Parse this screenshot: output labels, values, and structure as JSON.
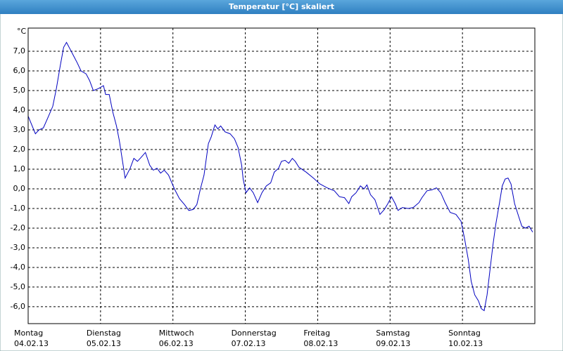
{
  "chart_data": {
    "type": "line",
    "title": "Temperatur [°C] skaliert",
    "y_unit": "°C",
    "xlim": [
      0,
      7
    ],
    "xticks": [
      {
        "value": 0,
        "label": "Montag"
      },
      {
        "value": 1,
        "label": "Dienstag"
      },
      {
        "value": 2,
        "label": "Mittwoch"
      },
      {
        "value": 3,
        "label": "Donnerstag"
      },
      {
        "value": 4,
        "label": "Freitag"
      },
      {
        "value": 5,
        "label": "Samstag"
      },
      {
        "value": 6,
        "label": "Sonntag"
      }
    ],
    "xtick_dates": [
      "04.02.13",
      "05.02.13",
      "06.02.13",
      "07.02.13",
      "08.02.13",
      "09.02.13",
      "10.02.13"
    ],
    "ylim": [
      -6.86,
      8.18
    ],
    "yticks": [
      {
        "value": -6,
        "label": "-6,0"
      },
      {
        "value": -5,
        "label": "-5,0"
      },
      {
        "value": -4,
        "label": "-4,0"
      },
      {
        "value": -3,
        "label": "-3,0"
      },
      {
        "value": -2,
        "label": "-2,0"
      },
      {
        "value": -1,
        "label": "-1,0"
      },
      {
        "value": 0,
        "label": "0,0"
      },
      {
        "value": 1,
        "label": "1,0"
      },
      {
        "value": 2,
        "label": "2,0"
      },
      {
        "value": 3,
        "label": "3,0"
      },
      {
        "value": 4,
        "label": "4,0"
      },
      {
        "value": 5,
        "label": "5,0"
      },
      {
        "value": 6,
        "label": "6,0"
      },
      {
        "value": 7,
        "label": "7,0"
      }
    ],
    "grid": true,
    "color": "#0000c0",
    "x": [
      0,
      0.1,
      0.15,
      0.21,
      0.27,
      0.34,
      0.39,
      0.44,
      0.49,
      0.53,
      0.58,
      0.63,
      0.68,
      0.73,
      0.8,
      0.85,
      0.9,
      0.97,
      1.04,
      1.07,
      1.12,
      1.17,
      1.22,
      1.26,
      1.34,
      1.41,
      1.46,
      1.51,
      1.56,
      1.62,
      1.68,
      1.73,
      1.78,
      1.83,
      1.88,
      1.94,
      2.02,
      2.09,
      2.16,
      2.22,
      2.28,
      2.33,
      2.38,
      2.43,
      2.49,
      2.53,
      2.58,
      2.62,
      2.66,
      2.72,
      2.79,
      2.85,
      2.9,
      2.95,
      2.97,
      3.01,
      3.06,
      3.11,
      3.17,
      3.23,
      3.29,
      3.35,
      3.4,
      3.46,
      3.5,
      3.55,
      3.6,
      3.65,
      3.69,
      3.74,
      3.84,
      3.94,
      4.03,
      4.13,
      4.23,
      4.3,
      4.37,
      4.43,
      4.47,
      4.53,
      4.59,
      4.64,
      4.68,
      4.73,
      4.79,
      4.86,
      4.92,
      4.97,
      5.02,
      5.07,
      5.11,
      5.17,
      5.25,
      5.32,
      5.4,
      5.44,
      5.51,
      5.58,
      5.64,
      5.7,
      5.76,
      5.83,
      5.91,
      5.98,
      6.03,
      6.08,
      6.12,
      6.17,
      6.22,
      6.26,
      6.3,
      6.34,
      6.38,
      6.42,
      6.46,
      6.51,
      6.55,
      6.59,
      6.63,
      6.67,
      6.72,
      6.78,
      6.82,
      6.87,
      6.92,
      6.97
    ],
    "values": [
      3.7,
      2.8,
      3.0,
      3.1,
      3.6,
      4.2,
      5.1,
      6.2,
      7.2,
      7.45,
      7.1,
      6.75,
      6.4,
      6.0,
      5.85,
      5.5,
      5.0,
      5.1,
      5.25,
      4.8,
      4.8,
      3.9,
      3.2,
      2.45,
      0.55,
      1.05,
      1.55,
      1.4,
      1.6,
      1.85,
      1.2,
      0.95,
      1.05,
      0.8,
      0.95,
      0.7,
      0.0,
      -0.5,
      -0.8,
      -1.1,
      -1.05,
      -0.8,
      0.0,
      0.7,
      2.3,
      2.65,
      3.25,
      3.05,
      3.2,
      2.9,
      2.8,
      2.55,
      2.1,
      1.2,
      0.5,
      -0.2,
      0.05,
      -0.2,
      -0.7,
      -0.2,
      0.15,
      0.3,
      0.85,
      1.05,
      1.4,
      1.45,
      1.3,
      1.55,
      1.4,
      1.1,
      0.85,
      0.55,
      0.25,
      0.05,
      -0.1,
      -0.4,
      -0.45,
      -0.75,
      -0.4,
      -0.2,
      0.15,
      0.0,
      0.2,
      -0.3,
      -0.55,
      -1.3,
      -1.05,
      -0.75,
      -0.4,
      -0.75,
      -1.1,
      -0.95,
      -1.0,
      -0.95,
      -0.7,
      -0.45,
      -0.1,
      -0.05,
      0.05,
      -0.2,
      -0.7,
      -1.2,
      -1.3,
      -1.65,
      -2.55,
      -3.6,
      -4.7,
      -5.4,
      -5.7,
      -6.1,
      -6.2,
      -5.4,
      -4.15,
      -2.9,
      -1.8,
      -0.75,
      0.15,
      0.5,
      0.55,
      0.25,
      -0.75,
      -1.45,
      -1.9,
      -2.0,
      -1.9,
      -2.2
    ]
  }
}
